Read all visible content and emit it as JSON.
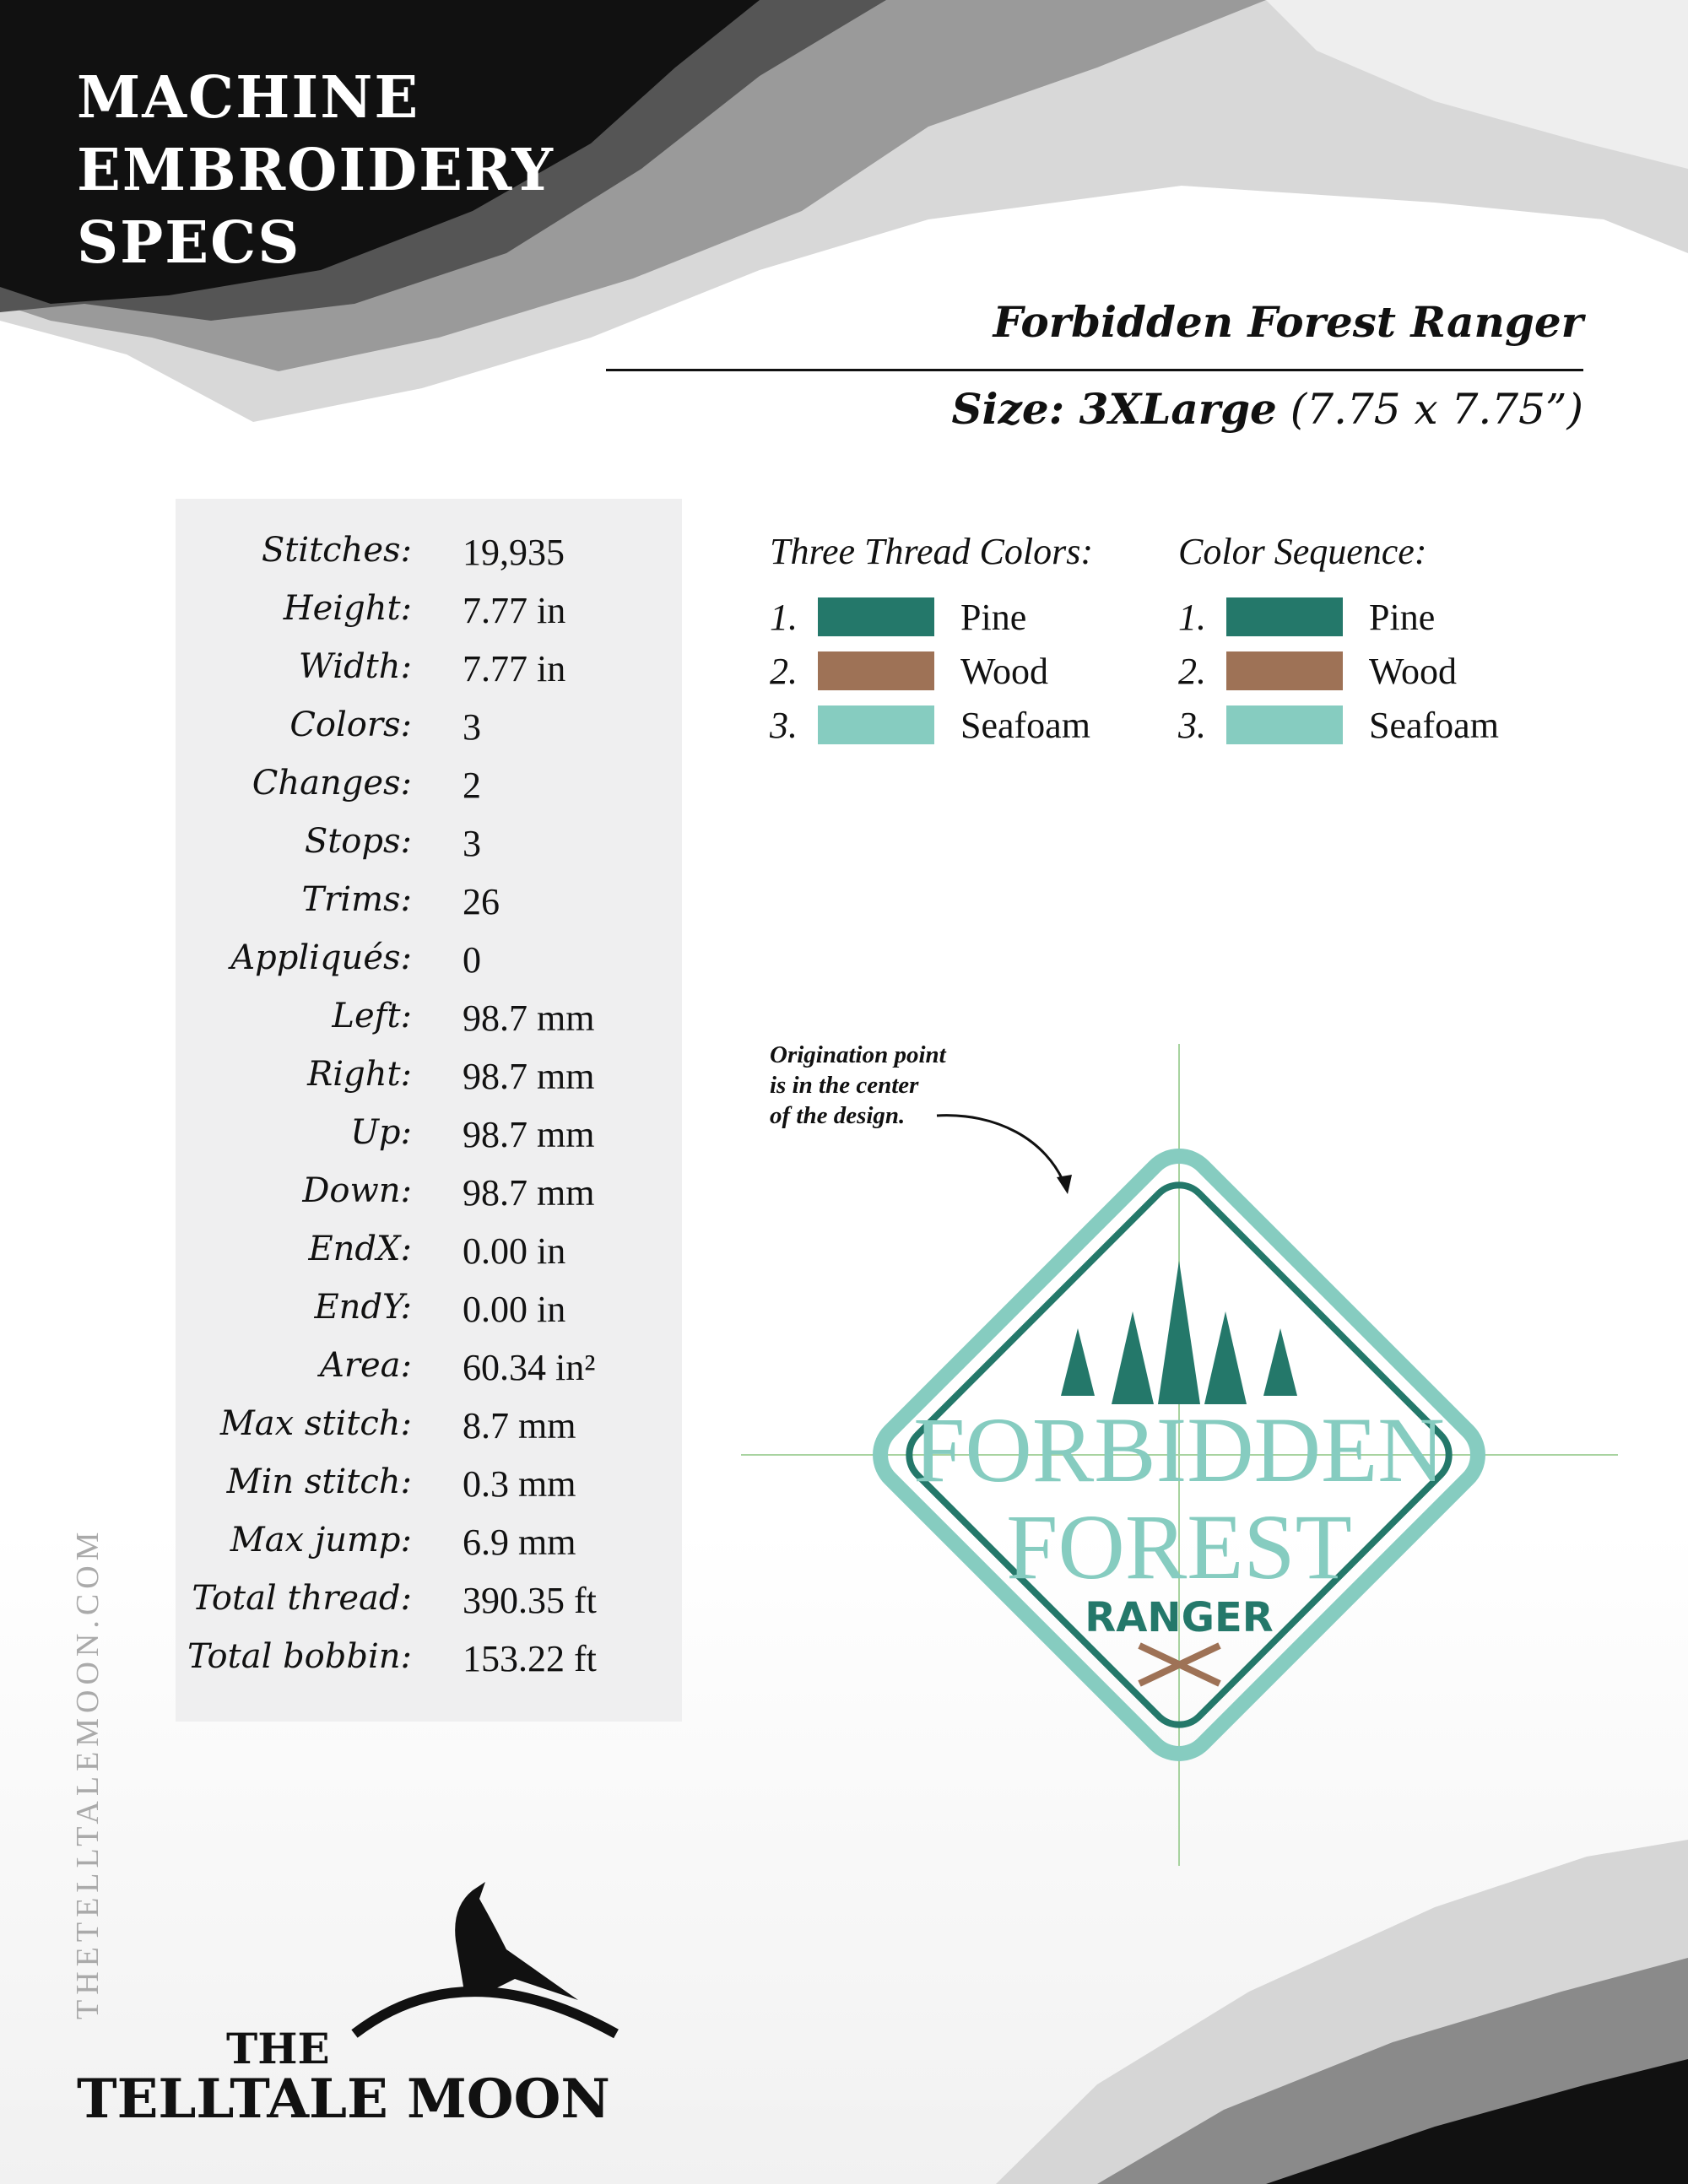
{
  "header": {
    "title_lines": [
      "MACHINE",
      "EMBROIDERY",
      "SPECS"
    ]
  },
  "design": {
    "name": "Forbidden Forest Ranger",
    "size_label": "Size: 3XLarge",
    "size_dims": " (7.75 x 7.75”)"
  },
  "specs": [
    {
      "label": "Stitches:",
      "value": "19,935"
    },
    {
      "label": "Height:",
      "value": "7.77 in"
    },
    {
      "label": "Width:",
      "value": "7.77 in"
    },
    {
      "label": "Colors:",
      "value": "3"
    },
    {
      "label": "Changes:",
      "value": "2"
    },
    {
      "label": "Stops:",
      "value": "3"
    },
    {
      "label": "Trims:",
      "value": "26"
    },
    {
      "label": "Appliqués:",
      "value": "0"
    },
    {
      "label": "Left:",
      "value": "98.7 mm"
    },
    {
      "label": "Right:",
      "value": "98.7 mm"
    },
    {
      "label": "Up:",
      "value": "98.7 mm"
    },
    {
      "label": "Down:",
      "value": "98.7 mm"
    },
    {
      "label": "EndX:",
      "value": "0.00 in"
    },
    {
      "label": "EndY:",
      "value": "0.00 in"
    },
    {
      "label": "Area:",
      "value": "60.34 in²"
    },
    {
      "label": "Max stitch:",
      "value": "8.7 mm"
    },
    {
      "label": "Min stitch:",
      "value": "0.3 mm"
    },
    {
      "label": "Max jump:",
      "value": "6.9 mm"
    },
    {
      "label": "Total thread:",
      "value": "390.35 ft"
    },
    {
      "label": "Total bobbin:",
      "value": "153.22 ft"
    }
  ],
  "thread_colors": {
    "heading": "Three Thread Colors:",
    "items": [
      {
        "num": "1.",
        "name": "Pine",
        "color": "#24786a"
      },
      {
        "num": "2.",
        "name": "Wood",
        "color": "#9e7256"
      },
      {
        "num": "3.",
        "name": "Seafoam",
        "color": "#86ccc0"
      }
    ]
  },
  "color_sequence": {
    "heading": "Color Sequence:",
    "items": [
      {
        "num": "1.",
        "name": "Pine",
        "color": "#24786a"
      },
      {
        "num": "2.",
        "name": "Wood",
        "color": "#9e7256"
      },
      {
        "num": "3.",
        "name": "Seafoam",
        "color": "#86ccc0"
      }
    ]
  },
  "preview": {
    "note_lines": [
      "Origination point",
      "is in the center",
      "of the design."
    ],
    "patch_text": [
      "FORBIDDEN",
      "FOREST",
      "RANGER"
    ]
  },
  "footer": {
    "website": "THETELLTALEMOON.COM",
    "logo_the": "THE",
    "logo_name": "TELLTALE MOON"
  }
}
